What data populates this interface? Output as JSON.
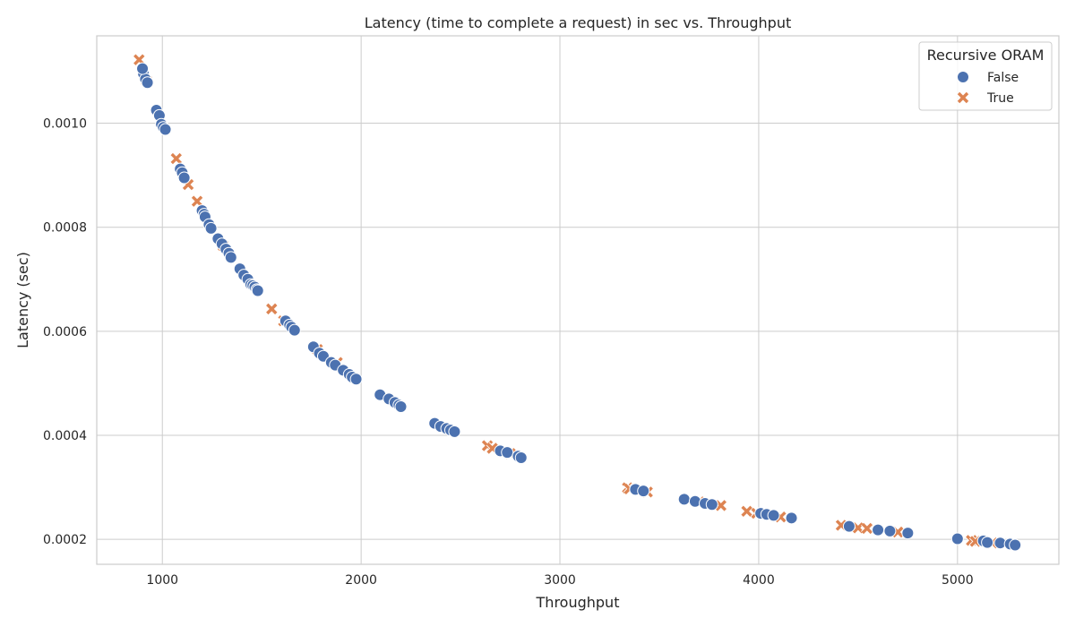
{
  "chart_data": {
    "type": "scatter",
    "title": "Latency (time to complete a request) in sec vs. Throughput",
    "xlabel": "Throughput",
    "ylabel": "Latency (sec)",
    "xlim": [
      670,
      5510
    ],
    "ylim": [
      0.000152,
      0.001168
    ],
    "xticks": [
      1000,
      2000,
      3000,
      4000,
      5000
    ],
    "xtick_labels": [
      "1000",
      "2000",
      "3000",
      "4000",
      "5000"
    ],
    "yticks": [
      0.0002,
      0.0004,
      0.0006,
      0.0008,
      0.001
    ],
    "ytick_labels": [
      "0.0002",
      "0.0004",
      "0.0006",
      "0.0008",
      "0.0010"
    ],
    "grid": true,
    "legend": {
      "title": "Recursive ORAM",
      "placement": "top-right"
    },
    "series": [
      {
        "name": "False",
        "marker": "circle",
        "color": "#4c72b0",
        "points": [
          [
            905,
            0.001095
          ],
          [
            915,
            0.001085
          ],
          [
            925,
            0.001078
          ],
          [
            900,
            0.001105
          ],
          [
            970,
            0.001025
          ],
          [
            985,
            0.001015
          ],
          [
            995,
            0.000998
          ],
          [
            1005,
            0.000992
          ],
          [
            1015,
            0.000988
          ],
          [
            1090,
            0.000912
          ],
          [
            1100,
            0.000905
          ],
          [
            1110,
            0.000895
          ],
          [
            1200,
            0.000832
          ],
          [
            1210,
            0.000825
          ],
          [
            1215,
            0.00082
          ],
          [
            1235,
            0.000805
          ],
          [
            1245,
            0.000798
          ],
          [
            1280,
            0.000778
          ],
          [
            1300,
            0.000768
          ],
          [
            1320,
            0.000758
          ],
          [
            1335,
            0.00075
          ],
          [
            1345,
            0.000742
          ],
          [
            1390,
            0.00072
          ],
          [
            1410,
            0.000708
          ],
          [
            1430,
            0.0007
          ],
          [
            1445,
            0.00069
          ],
          [
            1455,
            0.000688
          ],
          [
            1465,
            0.000685
          ],
          [
            1475,
            0.00068
          ],
          [
            1480,
            0.000678
          ],
          [
            1620,
            0.00062
          ],
          [
            1640,
            0.000612
          ],
          [
            1650,
            0.000608
          ],
          [
            1665,
            0.000602
          ],
          [
            1760,
            0.00057
          ],
          [
            1790,
            0.000558
          ],
          [
            1810,
            0.000552
          ],
          [
            1850,
            0.00054
          ],
          [
            1870,
            0.000535
          ],
          [
            1910,
            0.000525
          ],
          [
            1940,
            0.000517
          ],
          [
            1955,
            0.000512
          ],
          [
            1975,
            0.000508
          ],
          [
            2095,
            0.000478
          ],
          [
            2140,
            0.00047
          ],
          [
            2170,
            0.000463
          ],
          [
            2190,
            0.000458
          ],
          [
            2200,
            0.000455
          ],
          [
            2370,
            0.000423
          ],
          [
            2400,
            0.000417
          ],
          [
            2430,
            0.000413
          ],
          [
            2450,
            0.00041
          ],
          [
            2470,
            0.000407
          ],
          [
            2700,
            0.00037
          ],
          [
            2735,
            0.000367
          ],
          [
            2790,
            0.00036
          ],
          [
            2805,
            0.000357
          ],
          [
            3380,
            0.000296
          ],
          [
            3420,
            0.000293
          ],
          [
            3625,
            0.000277
          ],
          [
            3680,
            0.000273
          ],
          [
            3730,
            0.000269
          ],
          [
            3765,
            0.000267
          ],
          [
            4010,
            0.00025
          ],
          [
            4040,
            0.000248
          ],
          [
            4075,
            0.000246
          ],
          [
            4165,
            0.000241
          ],
          [
            4455,
            0.000225
          ],
          [
            4600,
            0.000218
          ],
          [
            4660,
            0.000216
          ],
          [
            4750,
            0.000212
          ],
          [
            5000,
            0.000201
          ],
          [
            5130,
            0.000197
          ],
          [
            5150,
            0.000194
          ],
          [
            5215,
            0.000193
          ],
          [
            5265,
            0.000191
          ],
          [
            5290,
            0.000189
          ]
        ]
      },
      {
        "name": "True",
        "marker": "x",
        "color": "#dd8452",
        "points": [
          [
            883,
            0.001122
          ],
          [
            920,
            0.001082
          ],
          [
            1070,
            0.000932
          ],
          [
            1130,
            0.000882
          ],
          [
            1175,
            0.00085
          ],
          [
            1305,
            0.000765
          ],
          [
            1550,
            0.000643
          ],
          [
            1610,
            0.00062
          ],
          [
            1780,
            0.000565
          ],
          [
            1880,
            0.00054
          ],
          [
            2635,
            0.00038
          ],
          [
            2660,
            0.000375
          ],
          [
            2750,
            0.000365
          ],
          [
            3340,
            0.000299
          ],
          [
            3350,
            0.000297
          ],
          [
            3440,
            0.000291
          ],
          [
            3700,
            0.000272
          ],
          [
            3810,
            0.000265
          ],
          [
            3940,
            0.000254
          ],
          [
            3990,
            0.00025
          ],
          [
            4110,
            0.000243
          ],
          [
            4415,
            0.000227
          ],
          [
            4500,
            0.000222
          ],
          [
            4545,
            0.000221
          ],
          [
            4700,
            0.000214
          ],
          [
            5070,
            0.000198
          ],
          [
            5090,
            0.000196
          ],
          [
            5175,
            0.000193
          ]
        ]
      }
    ]
  }
}
